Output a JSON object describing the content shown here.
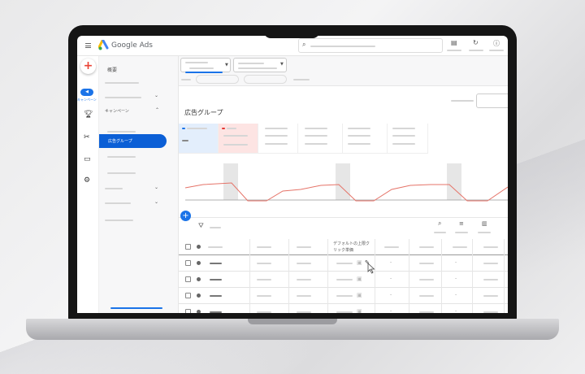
{
  "app": {
    "name": "Google Ads"
  },
  "rail": {
    "campaigns_label": "キャンペーン"
  },
  "nav": {
    "overview": "概要",
    "campaigns": "キャンペーン",
    "ad_groups": "広告グループ"
  },
  "main": {
    "title": "広告グループ",
    "table": {
      "bid_column_header": "デフォルトの上限クリック単価",
      "rows": [
        {
          "bid": "",
          "change": "-"
        },
        {
          "bid": "",
          "change": "-"
        },
        {
          "bid": "",
          "change": "-"
        },
        {
          "bid": "",
          "change": "-"
        }
      ]
    }
  },
  "colors": {
    "accent": "#1a73e8",
    "selected_nav": "#0b5fd6",
    "trend_line": "#e57368",
    "error_card": "#fde4e3",
    "info_card": "#e3eefc"
  }
}
